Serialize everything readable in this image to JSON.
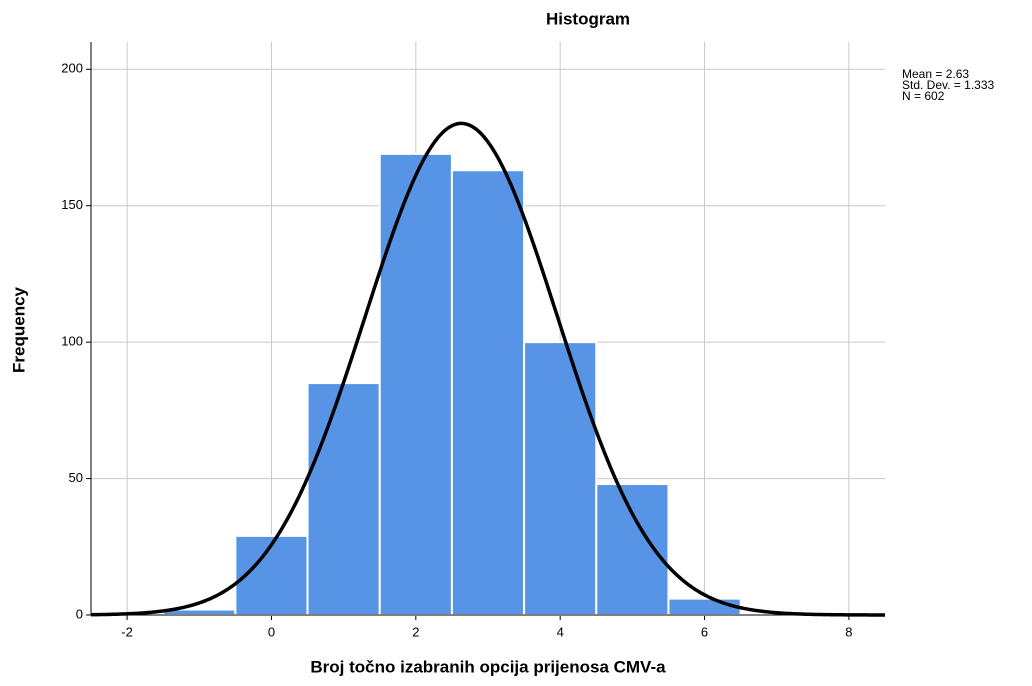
{
  "chart_data": {
    "type": "histogram",
    "title": "Histogram",
    "x_label": "Broj točno izabranih opcija prijenosa CMV-a",
    "y_label": "Frequency",
    "bins": [
      -1.5,
      -0.5,
      0.5,
      1.5,
      2.5,
      3.5,
      4.5,
      5.5,
      6.5
    ],
    "values": [
      2,
      29,
      85,
      169,
      163,
      100,
      48,
      6
    ],
    "color": "#5894e6",
    "xlim": [
      -2.5,
      8.5
    ],
    "xticks": [
      -2,
      0,
      2,
      4,
      6,
      8
    ],
    "ylim": [
      0,
      210
    ],
    "yticks": [
      0,
      50,
      100,
      150,
      200
    ],
    "grid": true,
    "normal_curve": {
      "mean": 2.63,
      "std_dev": 1.333,
      "n": 602,
      "labels": [
        "Mean = 2.63",
        "Std. Dev. = 1.333",
        "N = 602"
      ]
    }
  }
}
